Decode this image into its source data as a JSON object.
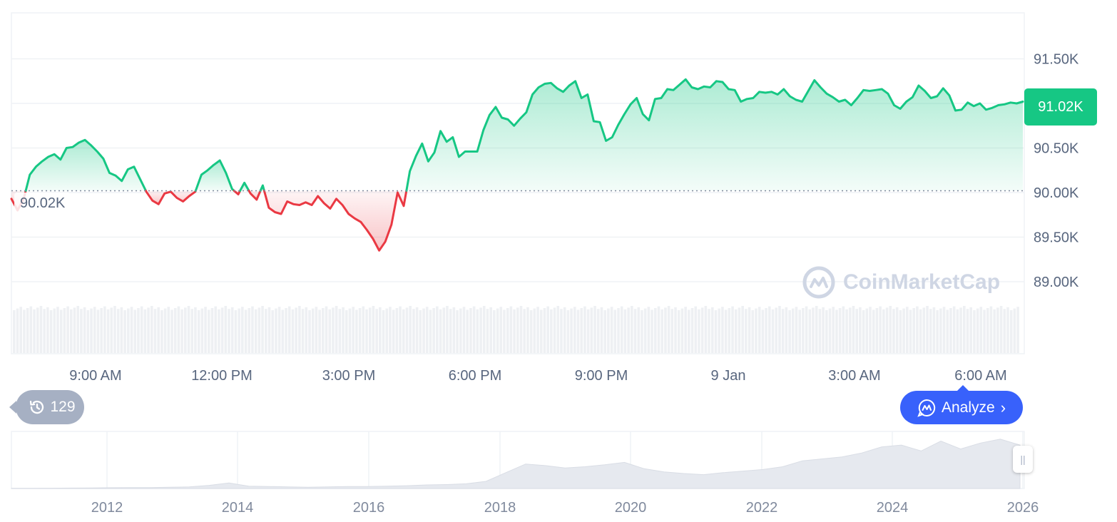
{
  "chart_data": [
    {
      "type": "line",
      "ylim": [
        88800,
        92000
      ],
      "y_ticks": [
        "91.50K",
        "91.00K",
        "90.50K",
        "90.00K",
        "89.50K",
        "89.00K"
      ],
      "y_tick_values": [
        91500,
        91000,
        90500,
        90000,
        89500,
        89000
      ],
      "x_ticks": [
        "9:00 AM",
        "12:00 PM",
        "3:00 PM",
        "6:00 PM",
        "9:00 PM",
        "9 Jan",
        "3:00 AM",
        "6:00 AM"
      ],
      "reference_price": 90020,
      "reference_label": "90.02K",
      "current_price": 91020,
      "current_label": "91.02K",
      "grid": true,
      "colors": {
        "up": "#16c784",
        "down": "#ea3943",
        "volume": "#eef0f3"
      },
      "series": [
        {
          "values": [
            89930,
            89800,
            89930,
            90200,
            90290,
            90350,
            90400,
            90430,
            90370,
            90500,
            90510,
            90560,
            90590,
            90530,
            90460,
            90380,
            90220,
            90190,
            90130,
            90260,
            90290,
            90150,
            90010,
            89910,
            89870,
            89990,
            90010,
            89940,
            89900,
            89960,
            90010,
            90200,
            90250,
            90310,
            90360,
            90220,
            90040,
            89980,
            90110,
            89990,
            89920,
            90080,
            89830,
            89780,
            89760,
            89900,
            89870,
            89860,
            89890,
            89860,
            89960,
            89880,
            89820,
            89930,
            89860,
            89760,
            89710,
            89670,
            89580,
            89480,
            89350,
            89450,
            89640,
            90000,
            89850,
            90240,
            90410,
            90550,
            90350,
            90450,
            90690,
            90570,
            90620,
            90400,
            90460,
            90460,
            90460,
            90700,
            90870,
            90960,
            90840,
            90820,
            90750,
            90830,
            90900,
            91100,
            91180,
            91220,
            91230,
            91170,
            91130,
            91200,
            91250,
            91060,
            91100,
            90800,
            90790,
            90580,
            90620,
            90760,
            90880,
            90990,
            91060,
            90880,
            90810,
            91050,
            91060,
            91160,
            91150,
            91210,
            91270,
            91180,
            91160,
            91190,
            91180,
            91250,
            91240,
            91160,
            91150,
            91020,
            91050,
            91060,
            91130,
            91120,
            91130,
            91100,
            91160,
            91080,
            91040,
            91020,
            91140,
            91260,
            91180,
            91110,
            91070,
            91020,
            91040,
            90980,
            91060,
            91150,
            91140,
            91150,
            91160,
            91110,
            90980,
            90940,
            91020,
            91070,
            91200,
            91140,
            91060,
            91080,
            91170,
            91090,
            90920,
            90930,
            91010,
            90970,
            91000,
            90930,
            90950,
            90980,
            90990,
            91010,
            91000,
            91020
          ]
        }
      ]
    },
    {
      "type": "area",
      "x_ticks": [
        "2012",
        "2014",
        "2016",
        "2018",
        "2020",
        "2022",
        "2024",
        "2026"
      ],
      "series": [
        {
          "values": [
            0.3,
            0.4,
            0.8,
            1.1,
            1.5,
            2.0,
            2.1,
            2.3,
            3,
            4,
            8,
            14,
            6,
            5,
            4,
            3,
            4,
            5,
            5,
            6,
            7,
            9,
            10,
            12,
            18,
            40,
            62,
            58,
            52,
            55,
            60,
            66,
            50,
            42,
            38,
            35,
            40,
            44,
            48,
            55,
            70,
            75,
            80,
            90,
            105,
            110,
            95,
            120,
            100,
            115,
            125,
            110
          ]
        }
      ]
    }
  ],
  "watermark_text": "CoinMarketCap",
  "history_badge": "129",
  "analyze_label": "Analyze"
}
